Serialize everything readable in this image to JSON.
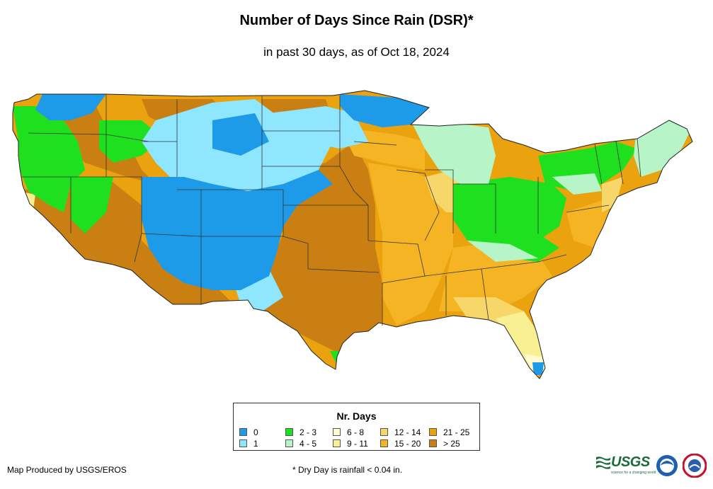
{
  "header": {
    "title": "Number of Days Since Rain (DSR)*",
    "subtitle": "in past 30 days, as of Oct 18, 2024"
  },
  "legend": {
    "title": "Nr. Days",
    "items": [
      {
        "label": "0",
        "color": "#1e9be8"
      },
      {
        "label": "1",
        "color": "#8fe6ff"
      },
      {
        "label": "2 - 3",
        "color": "#1fe01f"
      },
      {
        "label": "4 - 5",
        "color": "#b7f5c8"
      },
      {
        "label": "6 - 8",
        "color": "#fffbcf"
      },
      {
        "label": "9 - 11",
        "color": "#f8f092"
      },
      {
        "label": "12 - 14",
        "color": "#f7d76a"
      },
      {
        "label": "15 - 20",
        "color": "#f5b423"
      },
      {
        "label": "21 - 25",
        "color": "#eaa20f"
      },
      {
        "label": "> 25",
        "color": "#c97f12"
      }
    ]
  },
  "footer": {
    "credit": "Map Produced by USGS/EROS",
    "note": "* Dry Day is rainfall < 0.04 in.",
    "usgs_logo_text": "USGS",
    "usgs_tagline": "science for a changing world"
  },
  "icons": [
    "usgs-logo-icon",
    "noaa-logo-icon",
    "nws-logo-icon"
  ]
}
